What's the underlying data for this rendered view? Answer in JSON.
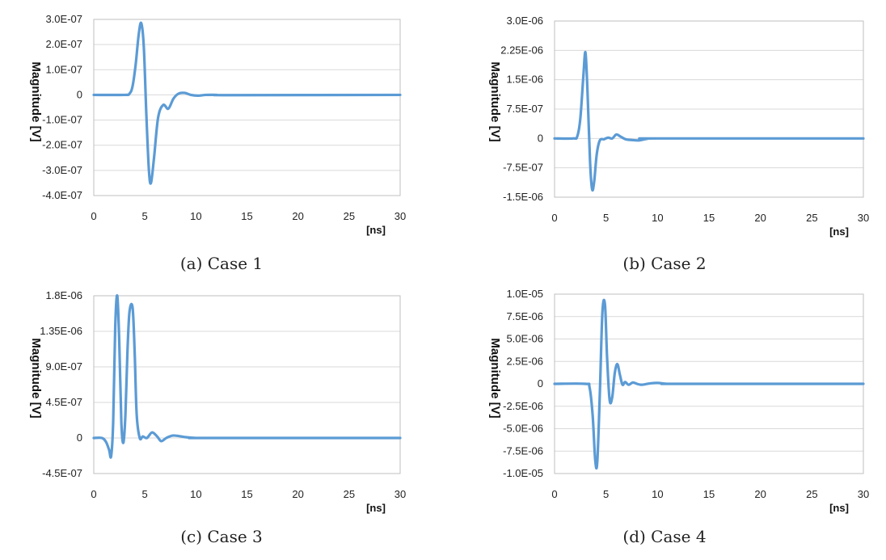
{
  "chart_data": [
    {
      "type": "line",
      "caption": "(a) Case 1",
      "ylabel": "Magnitude [V]",
      "xunit": "[ns]",
      "xlim": [
        0,
        30
      ],
      "xticks": [
        "0",
        "5",
        "10",
        "15",
        "20",
        "25",
        "30"
      ],
      "ylim": [
        -4e-07,
        3e-07
      ],
      "yticks": [
        {
          "v": 3e-07,
          "label": "3.0E-07"
        },
        {
          "v": 2e-07,
          "label": "2.0E-07"
        },
        {
          "v": 1e-07,
          "label": "1.0E-07"
        },
        {
          "v": 0,
          "label": "0"
        },
        {
          "v": -1e-07,
          "label": "-1.0E-07"
        },
        {
          "v": -2e-07,
          "label": "-2.0E-07"
        },
        {
          "v": -3e-07,
          "label": "-3.0E-07"
        },
        {
          "v": -4e-07,
          "label": "-4.0E-07"
        }
      ],
      "color": "#5B9BD5",
      "series": [
        {
          "x": [
            0,
            3.0,
            3.5,
            3.8,
            4.1,
            4.4,
            4.65,
            4.9,
            5.15,
            5.4,
            5.6,
            5.9,
            6.3,
            6.8,
            7.3,
            7.8,
            8.3,
            8.9,
            9.5,
            10.2,
            11.0,
            12.0,
            13.5,
            30
          ],
          "y": [
            0,
            0,
            5e-09,
            3.5e-08,
            1.2e-07,
            2.4e-07,
            2.85e-07,
            1.9e-07,
            -8e-08,
            -3e-07,
            -3.5e-07,
            -2.5e-07,
            -9e-08,
            -4e-08,
            -5.5e-08,
            -1.5e-08,
            5e-09,
            8e-09,
            0.0,
            -3e-09,
            0.0,
            0.0,
            -1e-09,
            0
          ]
        }
      ]
    },
    {
      "type": "line",
      "caption": "(b) Case 2",
      "ylabel": "Magnitude [V]",
      "xunit": "[ns]",
      "xlim": [
        0,
        30
      ],
      "xticks": [
        "0",
        "5",
        "10",
        "15",
        "20",
        "25",
        "30"
      ],
      "ylim": [
        -1.5e-06,
        3e-06
      ],
      "yticks": [
        {
          "v": 3e-06,
          "label": "3.0E-06"
        },
        {
          "v": 2.25e-06,
          "label": "2.25E-06"
        },
        {
          "v": 1.5e-06,
          "label": "1.5E-06"
        },
        {
          "v": 7.5e-07,
          "label": "7.5E-07"
        },
        {
          "v": 0,
          "label": "0"
        },
        {
          "v": -7.5e-07,
          "label": "-7.5E-07"
        },
        {
          "v": -1.5e-06,
          "label": "-1.5E-06"
        }
      ],
      "color": "#5B9BD5",
      "series": [
        {
          "x": [
            0,
            1.8,
            2.2,
            2.5,
            2.8,
            3.0,
            3.2,
            3.45,
            3.65,
            3.85,
            4.1,
            4.4,
            4.8,
            5.2,
            5.6,
            6.0,
            6.4,
            6.9,
            7.5,
            8.2,
            9.0,
            10.0,
            30
          ],
          "y": [
            0,
            0,
            5e-08,
            5e-07,
            1.6e-06,
            2.2e-06,
            1.2e-06,
            -6e-07,
            -1.3e-06,
            -1.1e-06,
            -4e-07,
            -5e-08,
            -2e-08,
            2e-08,
            0.0,
            1e-07,
            5e-08,
            -2e-08,
            -4e-08,
            -5e-08,
            -1e-08,
            0,
            0
          ]
        }
      ]
    },
    {
      "type": "line",
      "caption": "(c) Case 3",
      "ylabel": "Magnitude [V]",
      "xunit": "[ns]",
      "xlim": [
        0,
        30
      ],
      "xticks": [
        "0",
        "5",
        "10",
        "15",
        "20",
        "25",
        "30"
      ],
      "ylim": [
        -4.5e-07,
        1.8e-06
      ],
      "yticks": [
        {
          "v": 1.8e-06,
          "label": "1.8E-06"
        },
        {
          "v": 1.35e-06,
          "label": "1.35E-06"
        },
        {
          "v": 9e-07,
          "label": "9.0E-07"
        },
        {
          "v": 4.5e-07,
          "label": "4.5E-07"
        },
        {
          "v": 0,
          "label": "0"
        },
        {
          "v": -4.5e-07,
          "label": "-4.5E-07"
        }
      ],
      "color": "#5B9BD5",
      "series": [
        {
          "x": [
            0,
            0.8,
            1.2,
            1.5,
            1.7,
            1.9,
            2.1,
            2.3,
            2.5,
            2.7,
            2.9,
            3.1,
            3.3,
            3.5,
            3.8,
            4.0,
            4.2,
            4.5,
            4.8,
            5.2,
            5.7,
            6.2,
            6.6,
            7.1,
            7.7,
            8.3,
            9.0,
            10.0,
            11.0,
            30
          ],
          "y": [
            0,
            0,
            -5e-08,
            -1.5e-07,
            -2.3e-07,
            2e-07,
            1.4e-06,
            1.8e-06,
            1.2e-06,
            2e-07,
            -6e-08,
            3e-07,
            1.1e-06,
            1.6e-06,
            1.65e-06,
            1.1e-06,
            3e-07,
            0.0,
            2e-08,
            0.0,
            7e-08,
            2e-08,
            -4e-08,
            0.0,
            3e-08,
            2.5e-08,
            1e-08,
            0.0,
            0.0,
            0
          ]
        }
      ]
    },
    {
      "type": "line",
      "caption": "(d) Case 4",
      "ylabel": "Magnitude [V]",
      "xunit": "[ns]",
      "xlim": [
        0,
        30
      ],
      "xticks": [
        "0",
        "5",
        "10",
        "15",
        "20",
        "25",
        "30"
      ],
      "ylim": [
        -1e-05,
        1e-05
      ],
      "yticks": [
        {
          "v": 1e-05,
          "label": "1.0E-05"
        },
        {
          "v": 7.5e-06,
          "label": "7.5E-06"
        },
        {
          "v": 5e-06,
          "label": "5.0E-06"
        },
        {
          "v": 2.5e-06,
          "label": "2.5E-06"
        },
        {
          "v": 0,
          "label": "0"
        },
        {
          "v": -2.5e-06,
          "label": "-2.5E-06"
        },
        {
          "v": -5e-06,
          "label": "-5.0E-06"
        },
        {
          "v": -7.5e-06,
          "label": "-7.5E-06"
        },
        {
          "v": -1e-05,
          "label": "-1.0E-05"
        }
      ],
      "color": "#5B9BD5",
      "series": [
        {
          "x": [
            0,
            3.0,
            3.4,
            3.7,
            3.95,
            4.15,
            4.4,
            4.65,
            4.9,
            5.1,
            5.35,
            5.6,
            5.85,
            6.1,
            6.35,
            6.6,
            6.85,
            7.2,
            7.6,
            8.0,
            8.4,
            8.8,
            9.3,
            10.0,
            11.0,
            12.0,
            30
          ],
          "y": [
            0,
            0,
            -4e-07,
            -3.5e-06,
            -8.5e-06,
            -8.7e-06,
            -1e-06,
            8e-06,
            8.8e-06,
            3e-06,
            -1.8e-06,
            -1.5e-06,
            1.2e-06,
            2.2e-06,
            1e-06,
            -1e-07,
            2e-07,
            -1e-07,
            1.5e-07,
            0.0,
            -1e-07,
            -5e-08,
            5e-08,
            1e-07,
            0.0,
            0.0,
            0
          ]
        }
      ]
    }
  ]
}
